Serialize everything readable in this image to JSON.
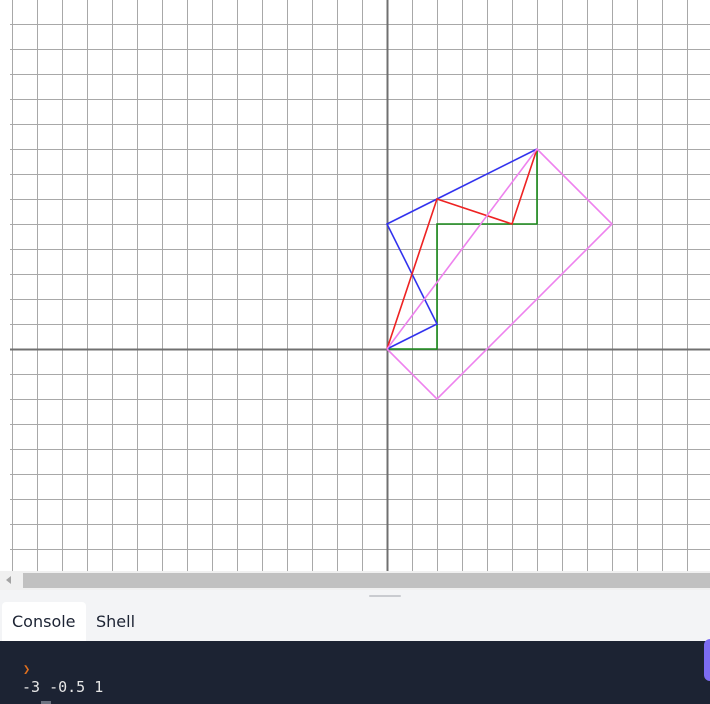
{
  "canvas": {
    "grid": true,
    "grid_color": "#a8a8a8",
    "axis_color": "#707070",
    "shapes": [
      {
        "name": "green-path",
        "color": "#1a8a1a",
        "points": [
          [
            0,
            0
          ],
          [
            2,
            0
          ],
          [
            2,
            5
          ],
          [
            6,
            5
          ],
          [
            6,
            8
          ]
        ]
      },
      {
        "name": "blue-path",
        "color": "#3333ee",
        "points": [
          [
            0,
            0
          ],
          [
            2,
            1
          ],
          [
            0,
            5
          ],
          [
            2,
            6
          ],
          [
            6,
            8
          ]
        ]
      },
      {
        "name": "red-path",
        "color": "#ee2222",
        "points": [
          [
            0,
            0
          ],
          [
            2,
            6
          ],
          [
            5,
            5
          ],
          [
            6,
            8
          ]
        ]
      },
      {
        "name": "violet-rectangle",
        "color": "#ee82ee",
        "points": [
          [
            0,
            0
          ],
          [
            2,
            -2
          ],
          [
            9,
            5
          ],
          [
            6,
            8
          ]
        ]
      }
    ]
  },
  "tabs": [
    {
      "label": "Console",
      "active": true
    },
    {
      "label": "Shell",
      "active": false
    }
  ],
  "console": {
    "prompt_icon": "chevron-prompt-icon",
    "output": "-3 -0.5 1"
  }
}
